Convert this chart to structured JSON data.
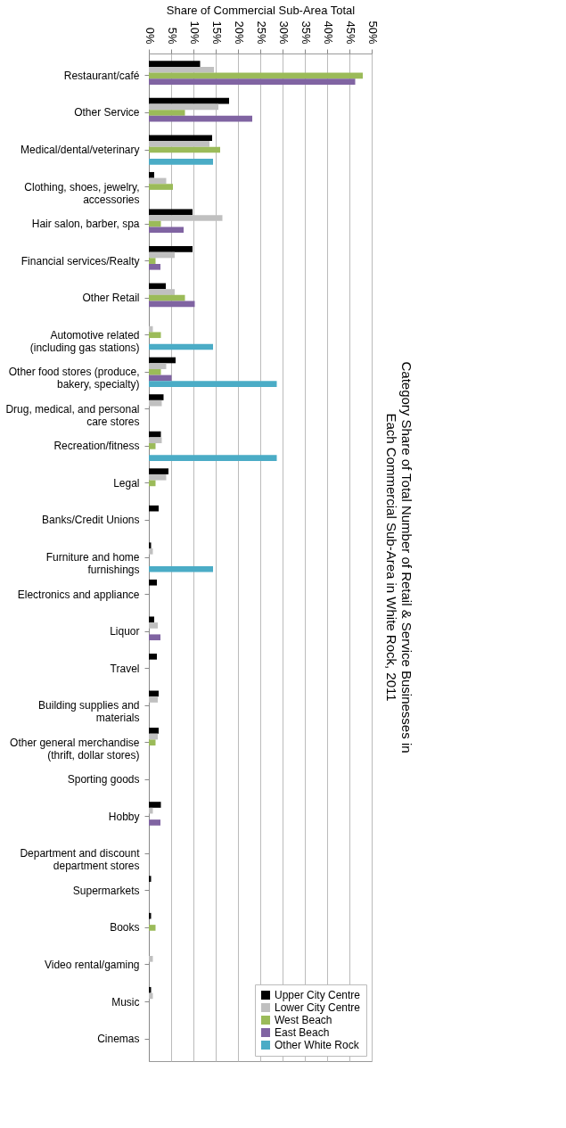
{
  "chart_data": {
    "type": "bar",
    "orientation": "horizontal",
    "title": "Category Share of Total Number of Retail & Service Businesses in Each Commercial Sub-Area in White Rock, 2011",
    "xlabel": "Share of Commercial Sub-Area Total",
    "categories": [
      "Restaurant/café",
      "Other Service",
      "Medical/dental/veterinary",
      "Clothing, shoes, jewelry, accessories",
      "Hair salon, barber, spa",
      "Financial services/Realty",
      "Other Retail",
      "Automotive related (including gas stations)",
      "Other food stores (produce, bakery, specialty)",
      "Drug, medical, and personal care stores",
      "Recreation/fitness",
      "Legal",
      "Banks/Credit Unions",
      "Furniture and home furnishings",
      "Electronics and appliance",
      "Liquor",
      "Travel",
      "Building supplies and materials",
      "Other general merchandise (thrift, dollar stores)",
      "Sporting goods",
      "Hobby",
      "Department and discount department stores",
      "Supermarkets",
      "Books",
      "Video rental/gaming",
      "Music",
      "Cinemas"
    ],
    "series": [
      {
        "name": "Upper City Centre",
        "color": "#000000",
        "values": [
          11.5,
          18.0,
          14.2,
          1.2,
          9.8,
          9.8,
          3.8,
          null,
          6.0,
          3.3,
          2.7,
          4.4,
          2.2,
          0.5,
          1.8,
          1.2,
          1.8,
          2.2,
          2.2,
          null,
          2.7,
          null,
          0.5,
          0.5,
          null,
          0.5,
          null
        ]
      },
      {
        "name": "Lower City Centre",
        "color": "#c0c0c0",
        "values": [
          14.6,
          15.6,
          13.6,
          3.9,
          16.5,
          5.8,
          5.8,
          0.9,
          3.9,
          2.9,
          2.9,
          3.9,
          null,
          0.9,
          null,
          2.0,
          null,
          2.0,
          2.0,
          null,
          0.9,
          null,
          null,
          null,
          0.9,
          0.9,
          null
        ]
      },
      {
        "name": "West Beach",
        "color": "#9bbb59",
        "values": [
          48.0,
          8.1,
          16.0,
          5.4,
          2.7,
          1.5,
          8.1,
          2.7,
          2.7,
          null,
          1.5,
          1.5,
          null,
          null,
          null,
          null,
          null,
          null,
          1.5,
          null,
          null,
          null,
          null,
          1.5,
          null,
          null,
          null
        ]
      },
      {
        "name": "East Beach",
        "color": "#8064a2",
        "values": [
          46.3,
          23.2,
          null,
          null,
          7.8,
          2.6,
          10.3,
          null,
          5.1,
          null,
          null,
          null,
          null,
          null,
          null,
          2.6,
          null,
          null,
          null,
          null,
          2.6,
          null,
          null,
          null,
          null,
          null,
          null
        ]
      },
      {
        "name": "Other White Rock",
        "color": "#4bacc6",
        "values": [
          null,
          null,
          14.4,
          null,
          null,
          null,
          null,
          14.4,
          28.7,
          null,
          28.7,
          null,
          null,
          14.4,
          null,
          null,
          null,
          null,
          null,
          null,
          null,
          null,
          null,
          null,
          null,
          null,
          null
        ]
      }
    ],
    "xlim": [
      0,
      50
    ],
    "xticks": [
      {
        "value": 0,
        "label": "0%"
      },
      {
        "value": 5,
        "label": "5%"
      },
      {
        "value": 10,
        "label": "10%"
      },
      {
        "value": 15,
        "label": "15%"
      },
      {
        "value": 20,
        "label": "20%"
      },
      {
        "value": 25,
        "label": "25%"
      },
      {
        "value": 30,
        "label": "30%"
      },
      {
        "value": 35,
        "label": "35%"
      },
      {
        "value": 40,
        "label": "40%"
      },
      {
        "value": 45,
        "label": "45%"
      },
      {
        "value": 50,
        "label": "50%"
      }
    ],
    "grid": "x",
    "legend": "bottom right"
  }
}
